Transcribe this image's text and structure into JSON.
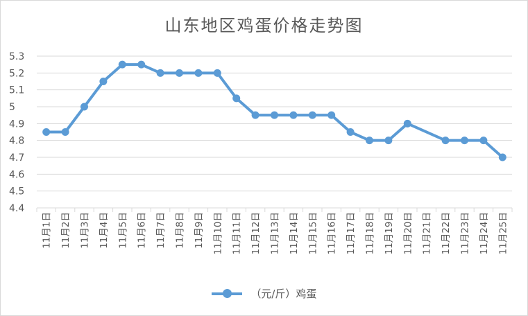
{
  "chart_data": {
    "type": "line",
    "title": "山东地区鸡蛋价格走势图",
    "categories": [
      "11月1日",
      "11月2日",
      "11月3日",
      "11月4日",
      "11月5日",
      "11月6日",
      "11月7日",
      "11月8日",
      "11月9日",
      "11月10日",
      "11月11日",
      "11月12日",
      "11月13日",
      "11月14日",
      "11月15日",
      "11月16日",
      "11月17日",
      "11月18日",
      "11月19日",
      "11月20日",
      "11月21日",
      "11月22日",
      "11月23日",
      "11月24日",
      "11月25日"
    ],
    "series": [
      {
        "name": "（元/斤）鸡蛋",
        "values": [
          4.85,
          4.85,
          5.0,
          5.15,
          5.25,
          5.25,
          5.2,
          5.2,
          5.2,
          5.2,
          5.05,
          4.95,
          4.95,
          4.95,
          4.95,
          4.95,
          4.85,
          4.8,
          4.8,
          4.9,
          null,
          4.8,
          4.8,
          4.8,
          4.7
        ],
        "color": "#5b9bd5"
      }
    ],
    "yticks": [
      "4.4",
      "4.5",
      "4.6",
      "4.7",
      "4.8",
      "4.9",
      "5",
      "5.1",
      "5.2",
      "5.3"
    ],
    "ylim": [
      4.4,
      5.3
    ],
    "grid": true,
    "legend_position": "bottom"
  }
}
